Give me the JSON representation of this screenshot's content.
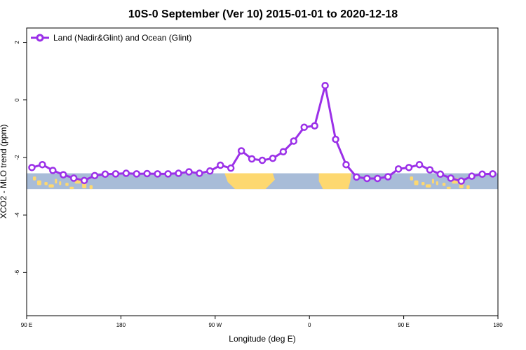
{
  "chart_data": {
    "type": "line",
    "title": "10S-0 September (Ver 10)   2015-01-01 to 2020-12-18",
    "xlabel": "Longitude (deg E)",
    "ylabel": "XCO2 - MLO trend (ppm)",
    "xlim": [
      90,
      540
    ],
    "ylim": [
      -7.5,
      2.5
    ],
    "x_ticks": [
      {
        "value": 90,
        "label": "90 E"
      },
      {
        "value": 180,
        "label": "180"
      },
      {
        "value": 270,
        "label": "90 W"
      },
      {
        "value": 360,
        "label": "0"
      },
      {
        "value": 450,
        "label": "90 E"
      },
      {
        "value": 540,
        "label": "180"
      }
    ],
    "y_ticks": [
      {
        "value": 2,
        "label": "2"
      },
      {
        "value": 0,
        "label": "0"
      },
      {
        "value": -2,
        "label": "-2"
      },
      {
        "value": -4,
        "label": "-4"
      },
      {
        "value": -6,
        "label": "-6"
      }
    ],
    "legend_position": "top-left",
    "grid": false,
    "colors": {
      "series": "#9b30e8",
      "ocean": "#a8bcd8",
      "land": "#fdd870"
    },
    "map_band": {
      "lat_range": [
        -10,
        0
      ],
      "y_range": [
        -3.1,
        -2.55
      ]
    },
    "series": [
      {
        "name": "Land (Nadir&Glint) and Ocean (Glint)",
        "x": [
          95,
          105,
          115,
          125,
          135,
          145,
          155,
          165,
          175,
          185,
          195,
          205,
          215,
          225,
          235,
          245,
          255,
          265,
          275,
          285,
          295,
          305,
          315,
          325,
          335,
          345,
          355,
          365,
          375,
          385,
          395,
          405,
          415,
          425,
          435,
          445,
          455,
          465,
          475,
          485,
          495,
          505,
          515,
          525,
          535
        ],
        "values": [
          -2.35,
          -2.25,
          -2.45,
          -2.6,
          -2.72,
          -2.8,
          -2.63,
          -2.58,
          -2.57,
          -2.55,
          -2.57,
          -2.56,
          -2.57,
          -2.57,
          -2.55,
          -2.5,
          -2.55,
          -2.47,
          -2.27,
          -2.37,
          -1.77,
          -2.05,
          -2.1,
          -2.03,
          -1.8,
          -1.43,
          -0.95,
          -0.9,
          0.5,
          -1.37,
          -2.25,
          -2.68,
          -2.73,
          -2.73,
          -2.67,
          -2.4,
          -2.35,
          -2.25,
          -2.43,
          -2.58,
          -2.72,
          -2.82,
          -2.65,
          -2.58,
          -2.57
        ]
      }
    ]
  }
}
